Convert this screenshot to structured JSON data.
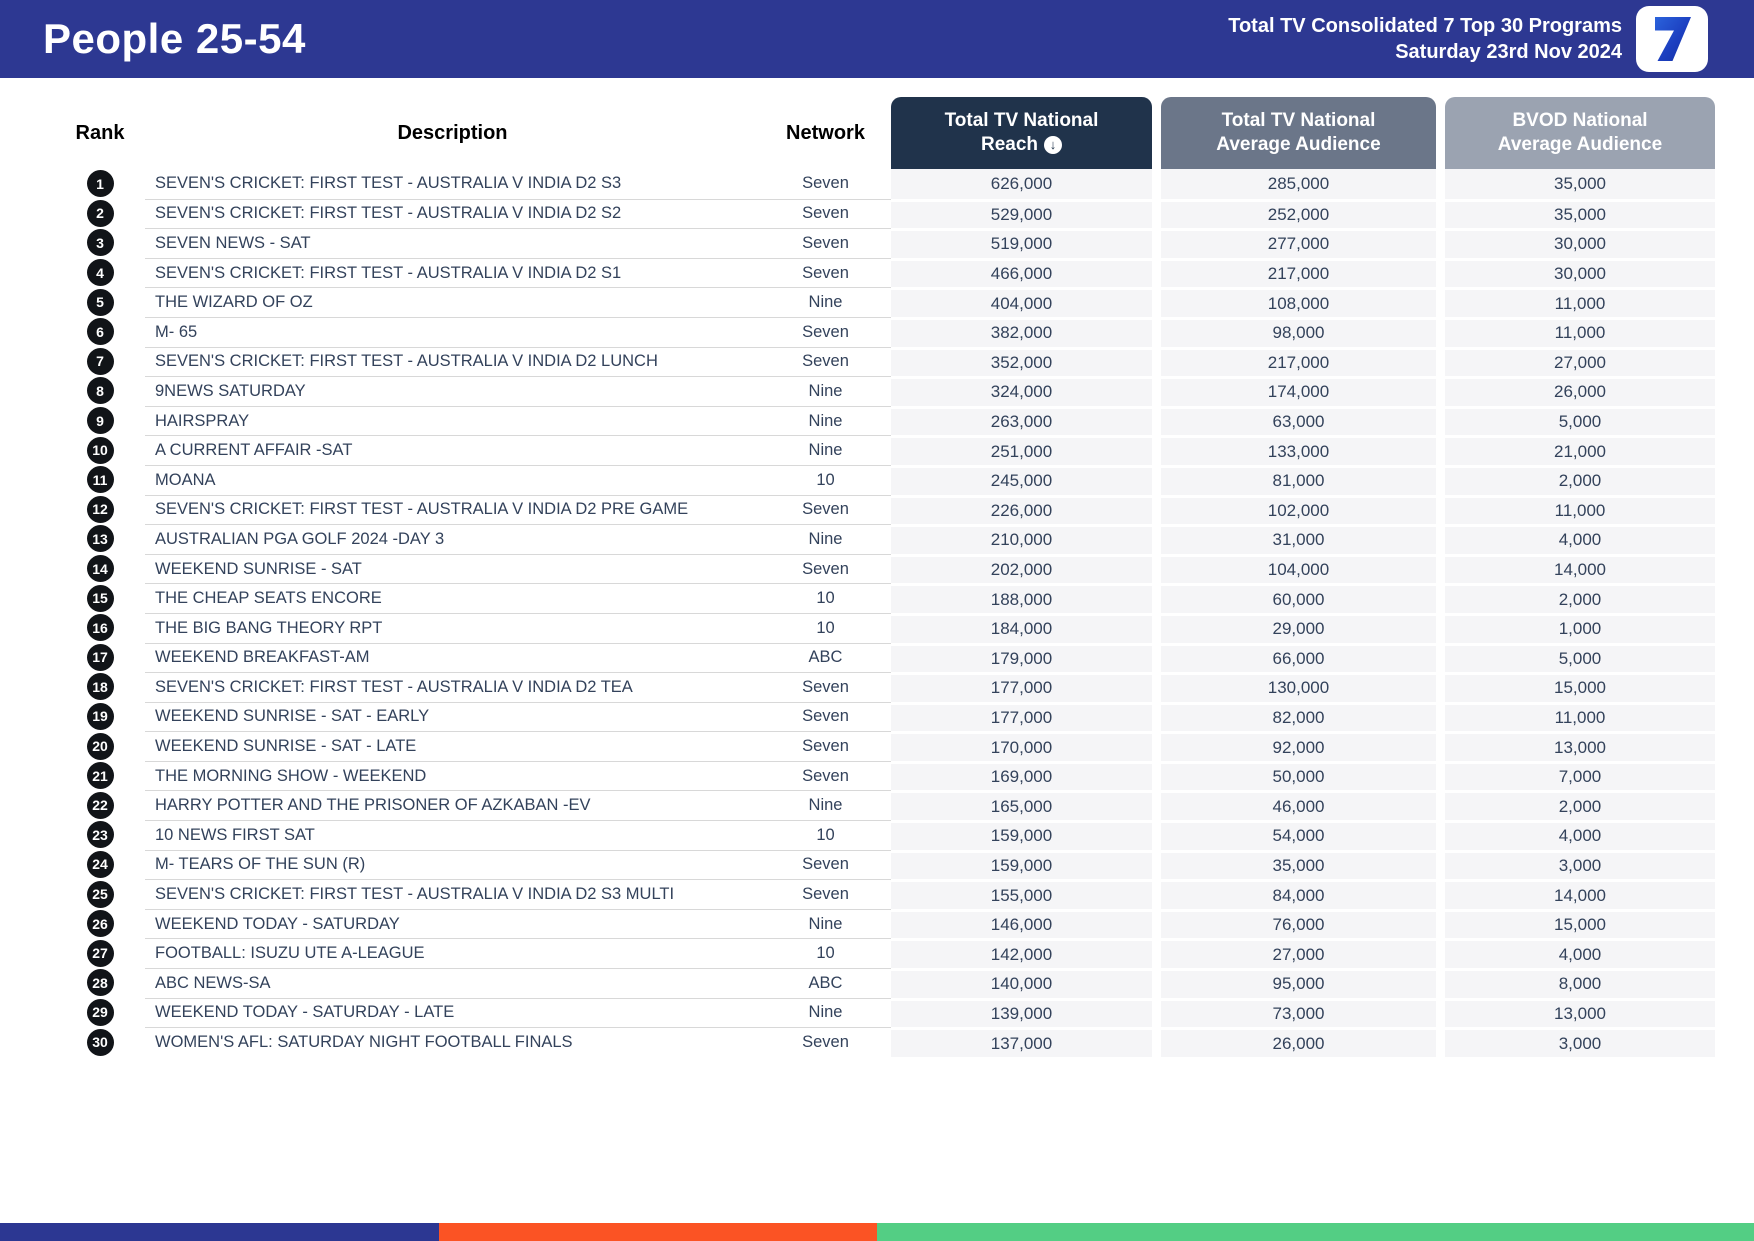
{
  "banner": {
    "title": "People 25-54",
    "subtitle_line1": "Total TV Consolidated 7 Top 30 Programs",
    "subtitle_line2": "Saturday 23rd Nov 2024",
    "logo_glyph": "7",
    "bg_color": "#2D3892"
  },
  "table": {
    "columns": {
      "rank": "Rank",
      "description": "Description",
      "network": "Network",
      "reach_line1": "Total TV National",
      "reach_line2": "Reach",
      "reach_sort_icon": "circle-down-arrow",
      "reach_sort_glyph": "↓",
      "avg_line1": "Total TV National",
      "avg_line2": "Average Audience",
      "bvod_line1": "BVOD National",
      "bvod_line2": "Average Audience"
    },
    "header_colors": {
      "reach": "#20334B",
      "avg": "#6B7689",
      "bvod": "#9BA3B1"
    },
    "rows": [
      {
        "rank": "1",
        "description": "SEVEN'S CRICKET: FIRST TEST - AUSTRALIA V INDIA D2 S3",
        "network": "Seven",
        "reach": "626,000",
        "avg": "285,000",
        "bvod": "35,000"
      },
      {
        "rank": "2",
        "description": "SEVEN'S CRICKET: FIRST TEST - AUSTRALIA V INDIA D2 S2",
        "network": "Seven",
        "reach": "529,000",
        "avg": "252,000",
        "bvod": "35,000"
      },
      {
        "rank": "3",
        "description": "SEVEN NEWS - SAT",
        "network": "Seven",
        "reach": "519,000",
        "avg": "277,000",
        "bvod": "30,000"
      },
      {
        "rank": "4",
        "description": "SEVEN'S CRICKET: FIRST TEST - AUSTRALIA V INDIA D2 S1",
        "network": "Seven",
        "reach": "466,000",
        "avg": "217,000",
        "bvod": "30,000"
      },
      {
        "rank": "5",
        "description": "THE WIZARD OF OZ",
        "network": "Nine",
        "reach": "404,000",
        "avg": "108,000",
        "bvod": "11,000"
      },
      {
        "rank": "6",
        "description": "M- 65",
        "network": "Seven",
        "reach": "382,000",
        "avg": "98,000",
        "bvod": "11,000"
      },
      {
        "rank": "7",
        "description": "SEVEN'S CRICKET: FIRST TEST - AUSTRALIA V INDIA D2 LUNCH",
        "network": "Seven",
        "reach": "352,000",
        "avg": "217,000",
        "bvod": "27,000"
      },
      {
        "rank": "8",
        "description": "9NEWS SATURDAY",
        "network": "Nine",
        "reach": "324,000",
        "avg": "174,000",
        "bvod": "26,000"
      },
      {
        "rank": "9",
        "description": "HAIRSPRAY",
        "network": "Nine",
        "reach": "263,000",
        "avg": "63,000",
        "bvod": "5,000"
      },
      {
        "rank": "10",
        "description": "A CURRENT AFFAIR -SAT",
        "network": "Nine",
        "reach": "251,000",
        "avg": "133,000",
        "bvod": "21,000"
      },
      {
        "rank": "11",
        "description": "MOANA",
        "network": "10",
        "reach": "245,000",
        "avg": "81,000",
        "bvod": "2,000"
      },
      {
        "rank": "12",
        "description": "SEVEN'S CRICKET: FIRST TEST - AUSTRALIA V INDIA D2 PRE GAME",
        "network": "Seven",
        "reach": "226,000",
        "avg": "102,000",
        "bvod": "11,000"
      },
      {
        "rank": "13",
        "description": "AUSTRALIAN PGA GOLF 2024 -DAY 3",
        "network": "Nine",
        "reach": "210,000",
        "avg": "31,000",
        "bvod": "4,000"
      },
      {
        "rank": "14",
        "description": "WEEKEND SUNRISE - SAT",
        "network": "Seven",
        "reach": "202,000",
        "avg": "104,000",
        "bvod": "14,000"
      },
      {
        "rank": "15",
        "description": "THE CHEAP SEATS ENCORE",
        "network": "10",
        "reach": "188,000",
        "avg": "60,000",
        "bvod": "2,000"
      },
      {
        "rank": "16",
        "description": "THE BIG BANG THEORY RPT",
        "network": "10",
        "reach": "184,000",
        "avg": "29,000",
        "bvod": "1,000"
      },
      {
        "rank": "17",
        "description": "WEEKEND BREAKFAST-AM",
        "network": "ABC",
        "reach": "179,000",
        "avg": "66,000",
        "bvod": "5,000"
      },
      {
        "rank": "18",
        "description": "SEVEN'S CRICKET: FIRST TEST - AUSTRALIA V INDIA D2 TEA",
        "network": "Seven",
        "reach": "177,000",
        "avg": "130,000",
        "bvod": "15,000"
      },
      {
        "rank": "19",
        "description": "WEEKEND SUNRISE - SAT - EARLY",
        "network": "Seven",
        "reach": "177,000",
        "avg": "82,000",
        "bvod": "11,000"
      },
      {
        "rank": "20",
        "description": "WEEKEND SUNRISE - SAT - LATE",
        "network": "Seven",
        "reach": "170,000",
        "avg": "92,000",
        "bvod": "13,000"
      },
      {
        "rank": "21",
        "description": "THE MORNING SHOW - WEEKEND",
        "network": "Seven",
        "reach": "169,000",
        "avg": "50,000",
        "bvod": "7,000"
      },
      {
        "rank": "22",
        "description": "HARRY POTTER AND THE PRISONER OF AZKABAN -EV",
        "network": "Nine",
        "reach": "165,000",
        "avg": "46,000",
        "bvod": "2,000"
      },
      {
        "rank": "23",
        "description": "10 NEWS FIRST SAT",
        "network": "10",
        "reach": "159,000",
        "avg": "54,000",
        "bvod": "4,000"
      },
      {
        "rank": "24",
        "description": "M- TEARS OF THE SUN (R)",
        "network": "Seven",
        "reach": "159,000",
        "avg": "35,000",
        "bvod": "3,000"
      },
      {
        "rank": "25",
        "description": "SEVEN'S CRICKET: FIRST TEST - AUSTRALIA V INDIA D2 S3 MULTI",
        "network": "Seven",
        "reach": "155,000",
        "avg": "84,000",
        "bvod": "14,000"
      },
      {
        "rank": "26",
        "description": "WEEKEND TODAY - SATURDAY",
        "network": "Nine",
        "reach": "146,000",
        "avg": "76,000",
        "bvod": "15,000"
      },
      {
        "rank": "27",
        "description": "FOOTBALL: ISUZU UTE A-LEAGUE",
        "network": "10",
        "reach": "142,000",
        "avg": "27,000",
        "bvod": "4,000"
      },
      {
        "rank": "28",
        "description": "ABC NEWS-SA",
        "network": "ABC",
        "reach": "140,000",
        "avg": "95,000",
        "bvod": "8,000"
      },
      {
        "rank": "29",
        "description": "WEEKEND TODAY - SATURDAY - LATE",
        "network": "Nine",
        "reach": "139,000",
        "avg": "73,000",
        "bvod": "13,000"
      },
      {
        "rank": "30",
        "description": "WOMEN'S AFL: SATURDAY NIGHT FOOTBALL FINALS",
        "network": "Seven",
        "reach": "137,000",
        "avg": "26,000",
        "bvod": "3,000"
      }
    ]
  },
  "footer": {
    "stripe_colors": [
      "#2C3792",
      "#FB5324",
      "#53CE84"
    ]
  }
}
